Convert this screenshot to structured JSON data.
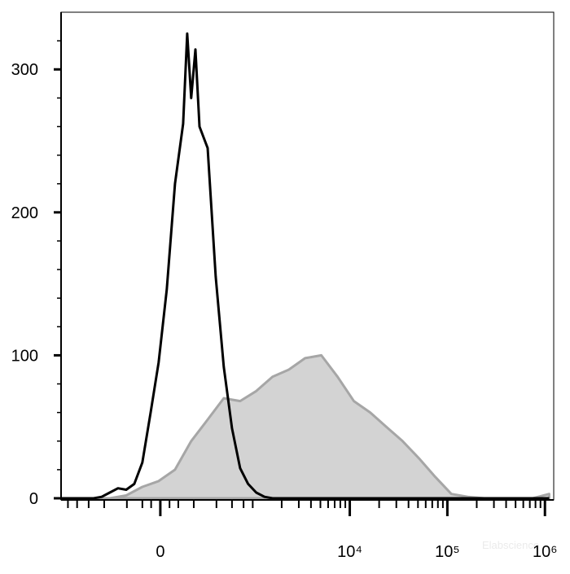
{
  "chart_data": {
    "type": "histogram-overlay",
    "xscale": "biexponential",
    "xlim": [
      -1180,
      1230000
    ],
    "ylim": [
      0,
      340
    ],
    "xticks": [
      {
        "value": 0,
        "label": "0"
      },
      {
        "value": 10000,
        "label": "10⁴"
      },
      {
        "value": 100000,
        "label": "10⁵"
      },
      {
        "value": 1000000,
        "label": "10⁶"
      }
    ],
    "xminorticks": [
      -1000,
      -800,
      -600,
      -400,
      -200,
      -100,
      -50,
      50,
      100,
      200,
      400,
      600,
      800,
      1000,
      2000,
      3000,
      4000,
      5000,
      6000,
      7000,
      8000,
      9000,
      20000,
      30000,
      40000,
      50000,
      60000,
      70000,
      80000,
      90000,
      200000,
      300000,
      400000,
      500000,
      600000,
      700000,
      800000,
      900000
    ],
    "yticks": [
      0,
      100,
      200,
      300
    ],
    "yminorticks": [
      20,
      40,
      60,
      80,
      120,
      140,
      160,
      180,
      220,
      240,
      260,
      280,
      320
    ],
    "watermark": "Elabscience",
    "series": [
      {
        "color": "#a6a6a6",
        "fill": "#d3d3d3",
        "x": [
          -1180,
          -795,
          -529,
          -343,
          -205,
          -100,
          -9,
          81,
          182,
          312,
          486,
          735,
          1090,
          1610,
          2370,
          3480,
          5110,
          7510,
          11000,
          16200,
          23700,
          34800,
          51100,
          75100,
          110000,
          162000,
          238000,
          349000,
          512000,
          753000,
          1105000
        ],
        "values": [
          0,
          0,
          0,
          0,
          2,
          8,
          12,
          20,
          40,
          55,
          70,
          68,
          75,
          85,
          90,
          98,
          100,
          85,
          68,
          60,
          50,
          40,
          28,
          15,
          3,
          1,
          0,
          0,
          0,
          0,
          3
        ]
      },
      {
        "color": "#000000",
        "x": [
          -1180,
          -969,
          -795,
          -650,
          -529,
          -428,
          -343,
          -269,
          -205,
          -150,
          -100,
          -53,
          -9,
          35,
          81,
          129,
          155,
          182,
          212,
          243,
          312,
          392,
          486,
          600,
          735,
          895,
          1090,
          1326,
          1610,
          1951,
          2370,
          5110,
          34800,
          162000,
          1105000
        ],
        "values": [
          0,
          0,
          0,
          0,
          0,
          1,
          4,
          7,
          6,
          10,
          25,
          60,
          95,
          146,
          220,
          262,
          325,
          280,
          314,
          260,
          245,
          155,
          92,
          49,
          21,
          10,
          4,
          1,
          0,
          0,
          0,
          0,
          0,
          0,
          0
        ]
      }
    ]
  }
}
